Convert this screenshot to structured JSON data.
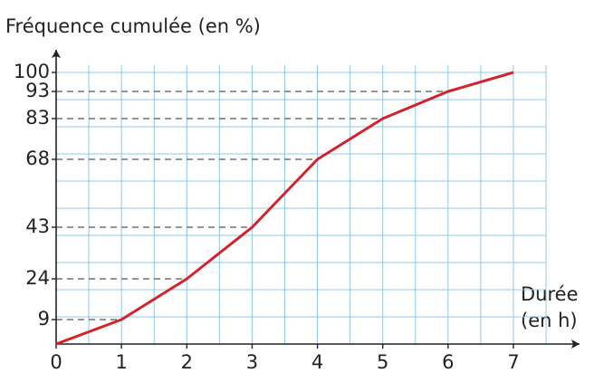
{
  "chart_data": {
    "type": "line",
    "title": "Fréquence cumulée (en %)",
    "xlabel": [
      "Durée",
      "(en h)"
    ],
    "x": [
      0,
      1,
      2,
      3,
      4,
      5,
      6,
      7
    ],
    "values": [
      0,
      9,
      24,
      43,
      68,
      83,
      93,
      100
    ],
    "color": "#d2232a",
    "xlim": [
      0,
      7
    ],
    "ylim": [
      0,
      100
    ],
    "xticks": [
      0,
      1,
      2,
      3,
      4,
      5,
      6,
      7
    ],
    "yticks": [
      9,
      24,
      43,
      68,
      83,
      93,
      100
    ],
    "grid": true
  }
}
